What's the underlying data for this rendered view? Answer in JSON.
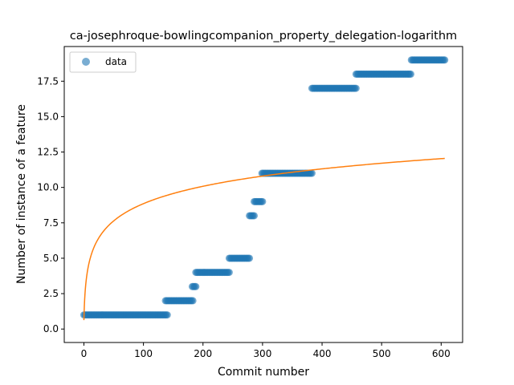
{
  "chart_data": {
    "type": "scatter",
    "title": "ca-josephroque-bowlingcompanion_property_delegation-logarithm",
    "xlabel": "Commit number",
    "ylabel": "Number of instance of a feature",
    "xlim": [
      -33,
      636
    ],
    "ylim": [
      -0.95,
      19.95
    ],
    "xticks": [
      0,
      100,
      200,
      300,
      400,
      500,
      600
    ],
    "xtick_labels": [
      "0",
      "100",
      "200",
      "300",
      "400",
      "500",
      "600"
    ],
    "yticks": [
      0.0,
      2.5,
      5.0,
      7.5,
      10.0,
      12.5,
      15.0,
      17.5
    ],
    "ytick_labels": [
      "0.0",
      "2.5",
      "5.0",
      "7.5",
      "10.0",
      "12.5",
      "15.0",
      "17.5"
    ],
    "grid": false,
    "legend": {
      "position": "upper-left",
      "entries": [
        "data"
      ]
    },
    "series": [
      {
        "name": "data",
        "kind": "points",
        "color": "#1f77b4",
        "segments": [
          {
            "x_start": 0,
            "x_end": 140,
            "y": 1
          },
          {
            "x_start": 137,
            "x_end": 183,
            "y": 2
          },
          {
            "x_start": 182,
            "x_end": 188,
            "y": 3
          },
          {
            "x_start": 188,
            "x_end": 244,
            "y": 4
          },
          {
            "x_start": 244,
            "x_end": 278,
            "y": 5
          },
          {
            "x_start": 278,
            "x_end": 286,
            "y": 8
          },
          {
            "x_start": 286,
            "x_end": 300,
            "y": 9
          },
          {
            "x_start": 299,
            "x_end": 383,
            "y": 11
          },
          {
            "x_start": 383,
            "x_end": 457,
            "y": 17
          },
          {
            "x_start": 457,
            "x_end": 550,
            "y": 18
          },
          {
            "x_start": 550,
            "x_end": 606,
            "y": 19
          }
        ]
      },
      {
        "name": "",
        "kind": "line",
        "color": "#ff7f0e",
        "function": "logarithmic",
        "x_start": 0,
        "x_end": 606,
        "y_at_x_end": 12.05,
        "y_at_x_300": 10.8
      }
    ]
  }
}
